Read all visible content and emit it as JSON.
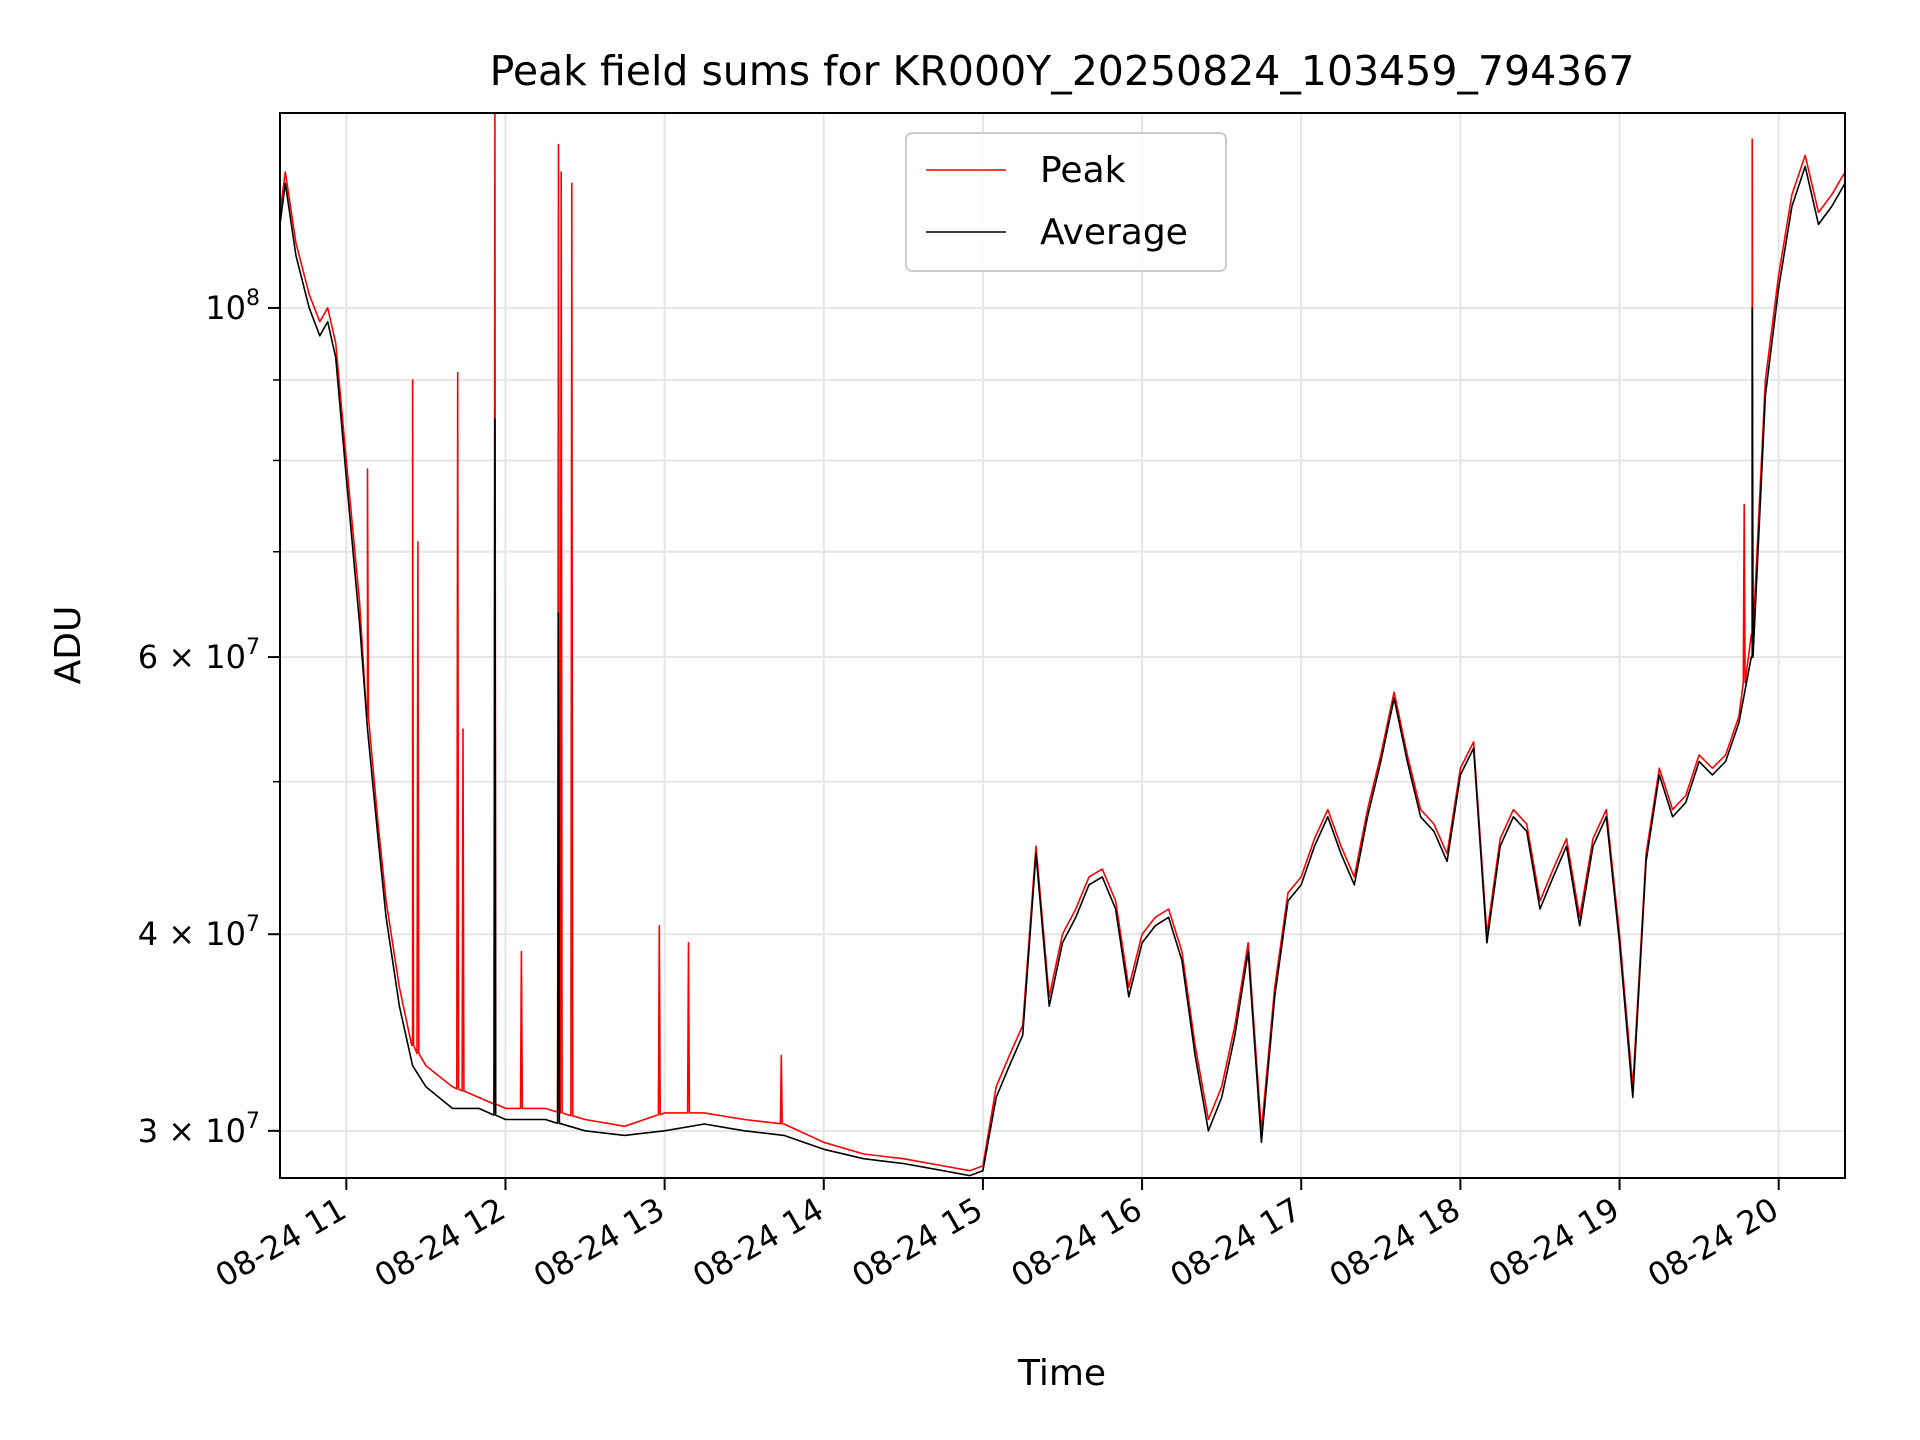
{
  "chart_data": {
    "type": "line",
    "title": "Peak field sums for KR000Y_20250824_103459_794367",
    "xlabel": "Time",
    "ylabel": "ADU",
    "yscale": "log",
    "xlim": [
      "2025-08-24T10:35",
      "2025-08-24T20:25"
    ],
    "ylim": [
      28000000,
      133000000
    ],
    "grid": true,
    "legend_position": "top-center",
    "x_tick_labels": [
      "08-24 11",
      "08-24 12",
      "08-24 13",
      "08-24 14",
      "08-24 15",
      "08-24 16",
      "08-24 17",
      "08-24 18",
      "08-24 19",
      "08-24 20"
    ],
    "x_tick_times": [
      "2025-08-24T11:00",
      "2025-08-24T12:00",
      "2025-08-24T13:00",
      "2025-08-24T14:00",
      "2025-08-24T15:00",
      "2025-08-24T16:00",
      "2025-08-24T17:00",
      "2025-08-24T18:00",
      "2025-08-24T19:00",
      "2025-08-24T20:00"
    ],
    "y_ticks": [
      {
        "value": 30000000,
        "mantissa": "3",
        "exponent": "7"
      },
      {
        "value": 40000000,
        "mantissa": "4",
        "exponent": "7"
      },
      {
        "value": 60000000,
        "mantissa": "6",
        "exponent": "7"
      },
      {
        "value": 100000000,
        "mantissa": "",
        "exponent": "8"
      }
    ],
    "y_minor_ticks": [
      50000000,
      70000000,
      80000000,
      90000000
    ],
    "x": [
      "2025-08-24T10:35",
      "2025-08-24T10:37",
      "2025-08-24T10:41",
      "2025-08-24T10:46",
      "2025-08-24T10:50",
      "2025-08-24T10:53",
      "2025-08-24T10:56",
      "2025-08-24T11:00",
      "2025-08-24T11:05",
      "2025-08-24T11:08",
      "2025-08-24T11:12",
      "2025-08-24T11:15",
      "2025-08-24T11:20",
      "2025-08-24T11:25",
      "2025-08-24T11:30",
      "2025-08-24T11:40",
      "2025-08-24T11:50",
      "2025-08-24T12:00",
      "2025-08-24T12:15",
      "2025-08-24T12:30",
      "2025-08-24T12:45",
      "2025-08-24T13:00",
      "2025-08-24T13:15",
      "2025-08-24T13:30",
      "2025-08-24T13:45",
      "2025-08-24T14:00",
      "2025-08-24T14:15",
      "2025-08-24T14:30",
      "2025-08-24T14:45",
      "2025-08-24T14:55",
      "2025-08-24T15:00",
      "2025-08-24T15:05",
      "2025-08-24T15:10",
      "2025-08-24T15:15",
      "2025-08-24T15:20",
      "2025-08-24T15:25",
      "2025-08-24T15:30",
      "2025-08-24T15:35",
      "2025-08-24T15:40",
      "2025-08-24T15:45",
      "2025-08-24T15:50",
      "2025-08-24T15:55",
      "2025-08-24T16:00",
      "2025-08-24T16:05",
      "2025-08-24T16:10",
      "2025-08-24T16:15",
      "2025-08-24T16:20",
      "2025-08-24T16:25",
      "2025-08-24T16:30",
      "2025-08-24T16:35",
      "2025-08-24T16:40",
      "2025-08-24T16:45",
      "2025-08-24T16:50",
      "2025-08-24T16:55",
      "2025-08-24T17:00",
      "2025-08-24T17:05",
      "2025-08-24T17:10",
      "2025-08-24T17:15",
      "2025-08-24T17:20",
      "2025-08-24T17:25",
      "2025-08-24T17:30",
      "2025-08-24T17:35",
      "2025-08-24T17:40",
      "2025-08-24T17:45",
      "2025-08-24T17:50",
      "2025-08-24T17:55",
      "2025-08-24T18:00",
      "2025-08-24T18:05",
      "2025-08-24T18:10",
      "2025-08-24T18:15",
      "2025-08-24T18:20",
      "2025-08-24T18:25",
      "2025-08-24T18:30",
      "2025-08-24T18:35",
      "2025-08-24T18:40",
      "2025-08-24T18:45",
      "2025-08-24T18:50",
      "2025-08-24T18:55",
      "2025-08-24T19:00",
      "2025-08-24T19:05",
      "2025-08-24T19:10",
      "2025-08-24T19:15",
      "2025-08-24T19:20",
      "2025-08-24T19:25",
      "2025-08-24T19:30",
      "2025-08-24T19:35",
      "2025-08-24T19:40",
      "2025-08-24T19:45",
      "2025-08-24T19:50",
      "2025-08-24T19:55",
      "2025-08-24T20:00",
      "2025-08-24T20:05",
      "2025-08-24T20:10",
      "2025-08-24T20:15",
      "2025-08-24T20:20",
      "2025-08-24T20:25"
    ],
    "series": [
      {
        "name": "Peak",
        "color": "#ff0000",
        "values": [
          115000000,
          122000000,
          110000000,
          102000000,
          98000000,
          100000000,
          95000000,
          80000000,
          65000000,
          55000000,
          47000000,
          42000000,
          37000000,
          34000000,
          33000000,
          32000000,
          31500000,
          31000000,
          31000000,
          30500000,
          30200000,
          30800000,
          30800000,
          30500000,
          30300000,
          29500000,
          29000000,
          28800000,
          28500000,
          28300000,
          28500000,
          32000000,
          33500000,
          35000000,
          45500000,
          36500000,
          40000000,
          41500000,
          43500000,
          44000000,
          42000000,
          37000000,
          40000000,
          41000000,
          41500000,
          39000000,
          34000000,
          30500000,
          32000000,
          35000000,
          39500000,
          30000000,
          37000000,
          42500000,
          43500000,
          46000000,
          48000000,
          45500000,
          43500000,
          48000000,
          52000000,
          57000000,
          52000000,
          48000000,
          47000000,
          45000000,
          51000000,
          53000000,
          40000000,
          46000000,
          48000000,
          47000000,
          42000000,
          44000000,
          46000000,
          41000000,
          46000000,
          48000000,
          40000000,
          32000000,
          45000000,
          51000000,
          48000000,
          49000000,
          52000000,
          51000000,
          52000000,
          55000000,
          62000000,
          90000000,
          105000000,
          118000000,
          125000000,
          115000000,
          118000000,
          122000000
        ],
        "spikes": [
          {
            "x": "2025-08-24T11:08",
            "y": 79000000
          },
          {
            "x": "2025-08-24T11:25",
            "y": 90000000
          },
          {
            "x": "2025-08-24T11:27",
            "y": 71000000
          },
          {
            "x": "2025-08-24T11:42",
            "y": 91000000
          },
          {
            "x": "2025-08-24T11:44",
            "y": 54000000
          },
          {
            "x": "2025-08-24T11:56",
            "y": 133000000
          },
          {
            "x": "2025-08-24T12:06",
            "y": 39000000
          },
          {
            "x": "2025-08-24T12:20",
            "y": 127000000
          },
          {
            "x": "2025-08-24T12:21",
            "y": 122000000
          },
          {
            "x": "2025-08-24T12:25",
            "y": 120000000
          },
          {
            "x": "2025-08-24T12:58",
            "y": 40500000
          },
          {
            "x": "2025-08-24T13:09",
            "y": 39500000
          },
          {
            "x": "2025-08-24T13:44",
            "y": 33500000
          },
          {
            "x": "2025-08-24T19:47",
            "y": 75000000
          },
          {
            "x": "2025-08-24T19:50",
            "y": 128000000
          }
        ]
      },
      {
        "name": "Average",
        "color": "#000000",
        "values": [
          113000000,
          120000000,
          108000000,
          100000000,
          96000000,
          98000000,
          93000000,
          78000000,
          63000000,
          54000000,
          46000000,
          41000000,
          36000000,
          33000000,
          32000000,
          31000000,
          31000000,
          30500000,
          30500000,
          30000000,
          29800000,
          30000000,
          30300000,
          30000000,
          29800000,
          29200000,
          28800000,
          28600000,
          28300000,
          28100000,
          28300000,
          31500000,
          33000000,
          34500000,
          45000000,
          36000000,
          39500000,
          41000000,
          43000000,
          43500000,
          41500000,
          36500000,
          39500000,
          40500000,
          41000000,
          38500000,
          33500000,
          30000000,
          31500000,
          34500000,
          39000000,
          29500000,
          36500000,
          42000000,
          43000000,
          45500000,
          47500000,
          45000000,
          43000000,
          47500000,
          51500000,
          56500000,
          51500000,
          47500000,
          46500000,
          44500000,
          50500000,
          52500000,
          39500000,
          45500000,
          47500000,
          46500000,
          41500000,
          43500000,
          45500000,
          40500000,
          45500000,
          47500000,
          39500000,
          31500000,
          44500000,
          50500000,
          47500000,
          48500000,
          51500000,
          50500000,
          51500000,
          54500000,
          60000000,
          88000000,
          103000000,
          116000000,
          123000000,
          113000000,
          116000000,
          120000000
        ],
        "spikes": [
          {
            "x": "2025-08-24T11:56",
            "y": 85000000
          },
          {
            "x": "2025-08-24T12:20",
            "y": 64000000
          },
          {
            "x": "2025-08-24T19:50",
            "y": 100000000
          }
        ]
      }
    ]
  }
}
